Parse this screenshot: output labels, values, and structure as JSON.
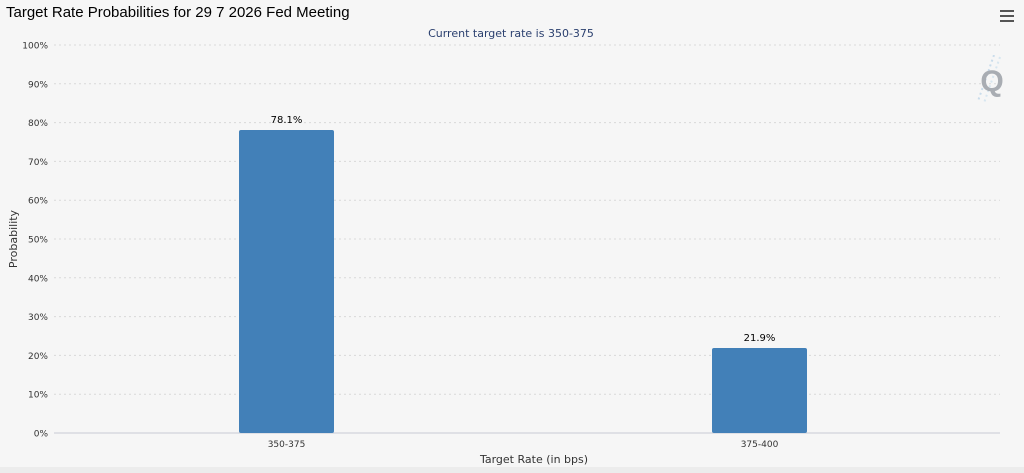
{
  "title": "Target Rate Probabilities for 29 7 2026 Fed Meeting",
  "menu_icon": "hamburger-menu-icon",
  "logo_icon": "q-logo-icon",
  "logo_letter": "Q",
  "chart_data": {
    "type": "bar",
    "subtitle": "Current target rate is 350-375",
    "xlabel": "Target Rate (in bps)",
    "ylabel": "Probability",
    "categories": [
      "350-375",
      "375-400"
    ],
    "values": [
      78.1,
      21.9
    ],
    "data_labels": [
      "78.1%",
      "21.9%"
    ],
    "ylim": [
      0,
      100
    ],
    "yticks": [
      0,
      10,
      20,
      30,
      40,
      50,
      60,
      70,
      80,
      90,
      100
    ],
    "ytick_labels": [
      "0%",
      "10%",
      "20%",
      "30%",
      "40%",
      "50%",
      "60%",
      "70%",
      "80%",
      "90%",
      "100%"
    ],
    "grid": true,
    "bar_color": "#4280b8"
  }
}
